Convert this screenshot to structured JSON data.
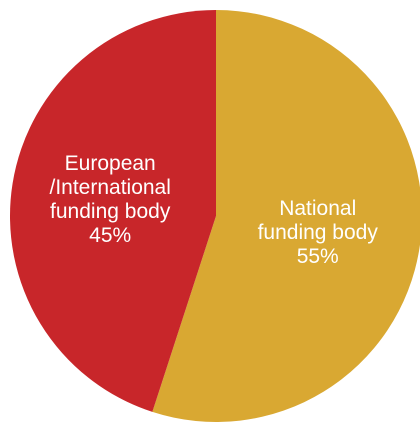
{
  "chart_data": {
    "type": "pie",
    "title": "",
    "slices": [
      {
        "label_lines": [
          "National",
          "funding body"
        ],
        "value": 55,
        "value_label": "55%",
        "color": "#D9A832"
      },
      {
        "label_lines": [
          "European",
          "/International",
          "funding body"
        ],
        "value": 45,
        "value_label": "45%",
        "color": "#C8262A"
      }
    ],
    "start_angle_deg": 0,
    "direction": "clockwise",
    "legend": "none"
  }
}
